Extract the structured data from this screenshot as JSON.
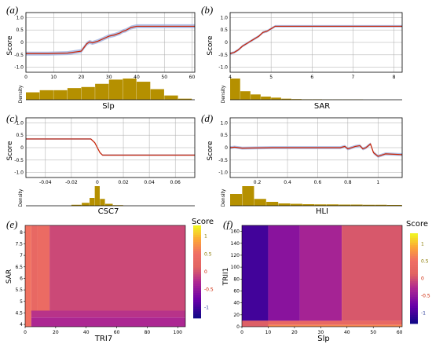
{
  "panels": [
    {
      "label": "(a)",
      "ylabel": "Score",
      "xlabel": "Slp",
      "density_label": "Density"
    },
    {
      "label": "(b)",
      "ylabel": "Score",
      "xlabel": "SAR",
      "density_label": "Density"
    },
    {
      "label": "(c)",
      "ylabel": "Score",
      "xlabel": "CSC7",
      "density_label": "Density"
    },
    {
      "label": "(d)",
      "ylabel": "Score",
      "xlabel": "HLI",
      "density_label": "Density"
    },
    {
      "label": "(e)",
      "ylabel": "SAR",
      "xlabel": "TRI7",
      "colorbar_title": "Score"
    },
    {
      "label": "(f)",
      "ylabel": "TRII1",
      "xlabel": "Slp",
      "colorbar_title": "Score"
    }
  ],
  "colors": {
    "line": "#cc2200",
    "ci_band": "#9fb0e0",
    "density_bar": "#b59000",
    "grid": "#aaaaaa"
  },
  "chart_data": [
    {
      "type": "line",
      "panel": "a",
      "xlim": [
        0,
        61
      ],
      "ylim": [
        -1.2,
        1.2
      ],
      "xticks": [
        "0",
        "10",
        "20",
        "30",
        "40",
        "50",
        "60"
      ],
      "yticks": [
        "1.0",
        "0.5",
        "0",
        "-0.5",
        "-1.0"
      ],
      "ytick_values": [
        1.0,
        0.5,
        0,
        -0.5,
        -1.0
      ],
      "xtick_values": [
        0,
        10,
        20,
        30,
        40,
        50,
        60
      ],
      "x": [
        0,
        8,
        15,
        20,
        21,
        22,
        23,
        24,
        26,
        28,
        30,
        32,
        34,
        35,
        36,
        38,
        40,
        61
      ],
      "y": [
        -0.45,
        -0.45,
        -0.43,
        -0.35,
        -0.2,
        -0.05,
        0.02,
        -0.02,
        0.05,
        0.15,
        0.25,
        0.3,
        0.38,
        0.45,
        0.48,
        0.6,
        0.65,
        0.65
      ],
      "ci_width": 0.08,
      "density": {
        "bins": [
          0,
          5,
          10,
          15,
          20,
          25,
          30,
          35,
          40,
          45,
          50,
          55,
          60
        ],
        "values": [
          0.35,
          0.45,
          0.45,
          0.55,
          0.6,
          0.75,
          0.95,
          1.0,
          0.85,
          0.5,
          0.2,
          0.05
        ]
      }
    },
    {
      "type": "line",
      "panel": "b",
      "xlim": [
        4,
        8.2
      ],
      "ylim": [
        -1.2,
        1.2
      ],
      "xticks": [
        "4",
        "5",
        "6",
        "7",
        "8"
      ],
      "xtick_values": [
        4,
        5,
        6,
        7,
        8
      ],
      "yticks": [
        "1.0",
        "0.5",
        "0",
        "-0.5",
        "-1.0"
      ],
      "ytick_values": [
        1.0,
        0.5,
        0,
        -0.5,
        -1.0
      ],
      "x": [
        4,
        4.1,
        4.2,
        4.3,
        4.4,
        4.5,
        4.6,
        4.7,
        4.8,
        4.9,
        5.0,
        5.1,
        8.2
      ],
      "y": [
        -0.45,
        -0.4,
        -0.3,
        -0.15,
        -0.05,
        0.05,
        0.15,
        0.25,
        0.4,
        0.45,
        0.55,
        0.65,
        0.65
      ],
      "ci_width": 0.05,
      "density": {
        "bins": [
          4,
          4.25,
          4.5,
          4.75,
          5,
          5.25,
          5.5,
          5.75,
          6,
          6.25,
          6.5,
          6.75,
          7,
          7.25,
          7.5,
          7.75,
          8
        ],
        "values": [
          1.0,
          0.4,
          0.25,
          0.15,
          0.1,
          0.05,
          0.03,
          0.02,
          0.02,
          0.01,
          0.01,
          0.01,
          0.01,
          0.0,
          0.0,
          0.0
        ]
      }
    },
    {
      "type": "line",
      "panel": "c",
      "xlim": [
        -0.055,
        0.075
      ],
      "ylim": [
        -1.2,
        1.2
      ],
      "xticks": [
        "-0.04",
        "-0.02",
        "0",
        "0.02",
        "0.04",
        "0.06"
      ],
      "xtick_values": [
        -0.04,
        -0.02,
        0,
        0.02,
        0.04,
        0.06
      ],
      "yticks": [
        "1.0",
        "0.5",
        "0",
        "-0.5",
        "-1.0"
      ],
      "ytick_values": [
        1.0,
        0.5,
        0,
        -0.5,
        -1.0
      ],
      "x": [
        -0.055,
        -0.005,
        -0.002,
        0,
        0.002,
        0.004,
        0.075
      ],
      "y": [
        0.35,
        0.35,
        0.2,
        0.0,
        -0.2,
        -0.3,
        -0.3
      ],
      "ci_width": 0.03,
      "density": {
        "bins": [
          -0.02,
          -0.012,
          -0.006,
          -0.002,
          0.002,
          0.006,
          0.012,
          0.02
        ],
        "values": [
          0.05,
          0.15,
          0.4,
          1.0,
          0.35,
          0.1,
          0.03
        ]
      }
    },
    {
      "type": "line",
      "panel": "d",
      "xlim": [
        0.02,
        1.16
      ],
      "ylim": [
        -1.2,
        1.2
      ],
      "xticks": [
        "0.2",
        "0.4",
        "0.6",
        "0.8",
        "1"
      ],
      "xtick_values": [
        0.2,
        0.4,
        0.6,
        0.8,
        1.0
      ],
      "yticks": [
        "1.0",
        "0.5",
        "0",
        "-0.5",
        "-1.0"
      ],
      "ytick_values": [
        1.0,
        0.5,
        0,
        -0.5,
        -1.0
      ],
      "x": [
        0.02,
        0.05,
        0.1,
        0.3,
        0.5,
        0.75,
        0.78,
        0.8,
        0.85,
        0.88,
        0.9,
        0.92,
        0.95,
        0.97,
        1.0,
        1.05,
        1.16
      ],
      "y": [
        0.0,
        0.02,
        -0.02,
        0.0,
        0.0,
        0.0,
        0.05,
        -0.05,
        0.05,
        0.08,
        -0.05,
        0.0,
        0.15,
        -0.2,
        -0.35,
        -0.25,
        -0.28
      ],
      "ci_width": 0.06,
      "density": {
        "bins": [
          0.02,
          0.1,
          0.18,
          0.26,
          0.34,
          0.42,
          0.5,
          0.58,
          0.66,
          0.74,
          0.82,
          0.9,
          0.98,
          1.06,
          1.16
        ],
        "values": [
          0.6,
          1.0,
          0.35,
          0.2,
          0.12,
          0.1,
          0.08,
          0.07,
          0.07,
          0.06,
          0.06,
          0.05,
          0.05,
          0.04
        ]
      }
    },
    {
      "type": "heatmap",
      "panel": "e",
      "xlim": [
        0,
        105
      ],
      "ylim": [
        3.9,
        8.3
      ],
      "xticks": [
        "0",
        "20",
        "40",
        "60",
        "80",
        "100"
      ],
      "xtick_values": [
        0,
        20,
        40,
        60,
        80,
        100
      ],
      "yticks": [
        "4",
        "4.5",
        "5",
        "5.5",
        "6",
        "6.5",
        "7",
        "7.5",
        "8"
      ],
      "ytick_values": [
        4,
        4.5,
        5,
        5.5,
        6,
        6.5,
        7,
        7.5,
        8
      ],
      "colorbar": {
        "ticks": [
          "1",
          "0.5",
          "0",
          "-0.5",
          "-1"
        ],
        "tick_values": [
          1,
          0.5,
          0,
          -0.5,
          -1
        ],
        "range": [
          -1.3,
          1.3
        ]
      },
      "cells": [
        {
          "x0": 0,
          "x1": 4,
          "y0": 3.9,
          "y1": 8.3,
          "v": 0.55
        },
        {
          "x0": 4,
          "x1": 8,
          "y0": 4.5,
          "y1": 8.3,
          "v": 0.3
        },
        {
          "x0": 8,
          "x1": 16,
          "y0": 4.5,
          "y1": 8.3,
          "v": 0.4
        },
        {
          "x0": 16,
          "x1": 105,
          "y0": 4.6,
          "y1": 8.3,
          "v": -0.05
        },
        {
          "x0": 4,
          "x1": 105,
          "y0": 4.3,
          "y1": 4.6,
          "v": -0.2
        },
        {
          "x0": 4,
          "x1": 105,
          "y0": 3.9,
          "y1": 4.3,
          "v": -0.3
        }
      ]
    },
    {
      "type": "heatmap",
      "panel": "f",
      "xlim": [
        0,
        61
      ],
      "ylim": [
        0,
        170
      ],
      "xticks": [
        "0",
        "10",
        "20",
        "30",
        "40",
        "50",
        "60"
      ],
      "xtick_values": [
        0,
        10,
        20,
        30,
        40,
        50,
        60
      ],
      "yticks": [
        "0",
        "20",
        "40",
        "60",
        "80",
        "100",
        "120",
        "140",
        "160"
      ],
      "ytick_values": [
        0,
        20,
        40,
        60,
        80,
        100,
        120,
        140,
        160
      ],
      "colorbar": {
        "ticks": [
          "1",
          "0.5",
          "0",
          "-0.5",
          "-1"
        ],
        "tick_values": [
          1,
          0.5,
          0,
          -0.5,
          -1
        ],
        "range": [
          -1.3,
          1.3
        ]
      },
      "cells": [
        {
          "x0": 0,
          "x1": 10,
          "y0": 10,
          "y1": 170,
          "v": -1.0
        },
        {
          "x0": 10,
          "x1": 22,
          "y0": 10,
          "y1": 170,
          "v": -0.55
        },
        {
          "x0": 22,
          "x1": 38,
          "y0": 10,
          "y1": 170,
          "v": -0.35
        },
        {
          "x0": 38,
          "x1": 61,
          "y0": 10,
          "y1": 170,
          "v": 0.05
        },
        {
          "x0": 0,
          "x1": 61,
          "y0": 3,
          "y1": 10,
          "v": 0.3
        },
        {
          "x0": 0,
          "x1": 61,
          "y0": 0,
          "y1": 3,
          "v": 0.7
        },
        {
          "x0": 0,
          "x1": 10,
          "y0": 0,
          "y1": 10,
          "v": 0.1
        }
      ]
    }
  ]
}
